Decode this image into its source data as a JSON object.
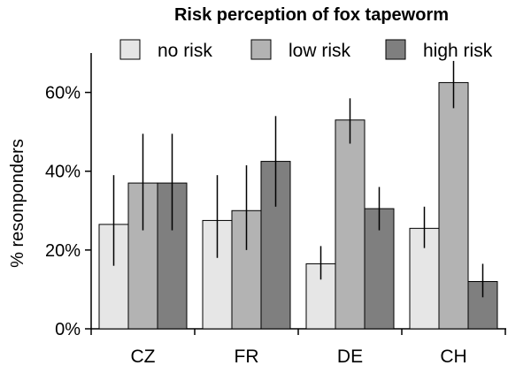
{
  "chart_data": {
    "type": "bar",
    "title": "Risk perception of fox tapeworm",
    "xlabel": "",
    "ylabel": "% resonponders",
    "ylim": [
      0,
      70
    ],
    "yticks": [
      0,
      20,
      40,
      60
    ],
    "ytick_labels": [
      "0%",
      "20%",
      "40%",
      "60%"
    ],
    "categories": [
      "CZ",
      "FR",
      "DE",
      "CH"
    ],
    "legend_position": "top",
    "grid": false,
    "series": [
      {
        "name": "no risk",
        "color": "#e6e6e6",
        "values": [
          26.5,
          27.5,
          16.5,
          25.5
        ],
        "err_low": [
          16.0,
          18.0,
          12.5,
          20.5
        ],
        "err_high": [
          39.0,
          39.0,
          21.0,
          31.0
        ]
      },
      {
        "name": "low risk",
        "color": "#b3b3b3",
        "values": [
          37.0,
          30.0,
          53.0,
          62.5
        ],
        "err_low": [
          25.0,
          20.0,
          47.0,
          56.0
        ],
        "err_high": [
          49.5,
          41.5,
          58.5,
          68.0
        ]
      },
      {
        "name": "high risk",
        "color": "#7f7f7f",
        "values": [
          37.0,
          42.5,
          30.5,
          12.0
        ],
        "err_low": [
          25.0,
          31.0,
          25.0,
          8.0
        ],
        "err_high": [
          49.5,
          54.0,
          36.0,
          16.5
        ]
      }
    ]
  }
}
